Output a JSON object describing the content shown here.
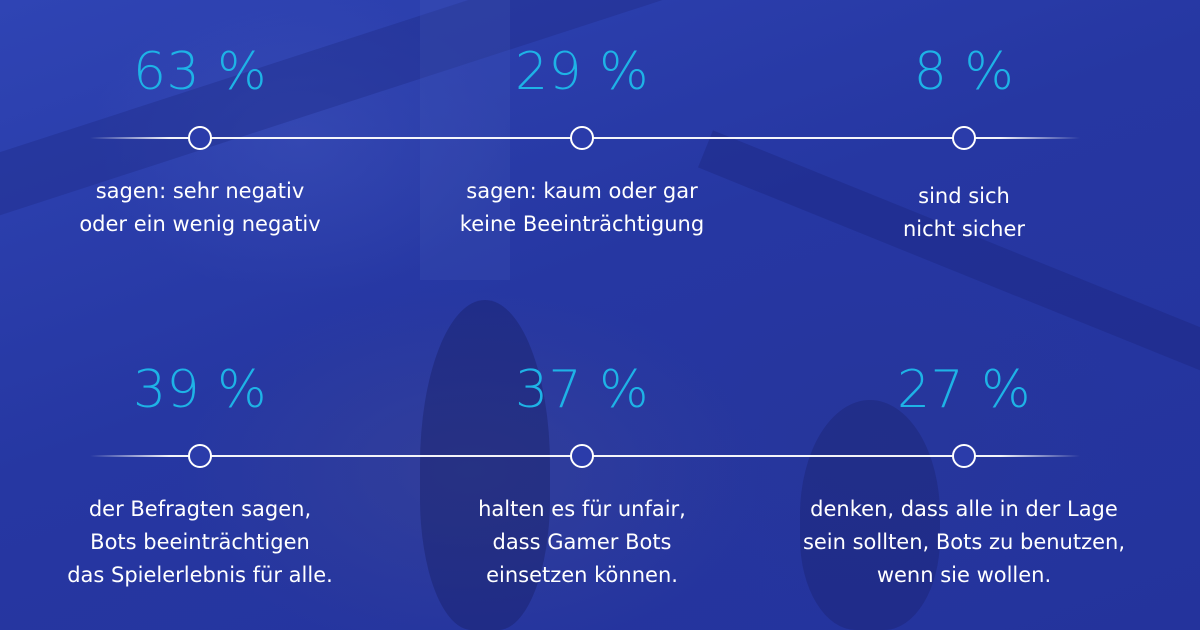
{
  "stats_top": [
    {
      "percent": "63 %",
      "line1": "sagen: sehr negativ",
      "line2": "oder ein wenig negativ",
      "line3": ""
    },
    {
      "percent": "29 %",
      "line1": "sagen: kaum oder gar",
      "line2": "keine Beeinträchtigung",
      "line3": ""
    },
    {
      "percent": "8 %",
      "line1": "sind sich",
      "line2": "nicht sicher",
      "line3": ""
    }
  ],
  "stats_bottom": [
    {
      "percent": "39 %",
      "line1": "der Befragten sagen,",
      "line2": "Bots beeinträchtigen",
      "line3": "das Spielerlebnis für alle."
    },
    {
      "percent": "37 %",
      "line1": "halten es für unfair,",
      "line2": "dass Gamer Bots",
      "line3": "einsetzen können."
    },
    {
      "percent": "27 %",
      "line1": "denken, dass alle in der Lage",
      "line2": "sein sollten, Bots zu benutzen,",
      "line3": "wenn sie wollen."
    }
  ],
  "colors": {
    "accent": "#1eb3e6",
    "background": "#2a3aa6",
    "text": "#ffffff"
  }
}
